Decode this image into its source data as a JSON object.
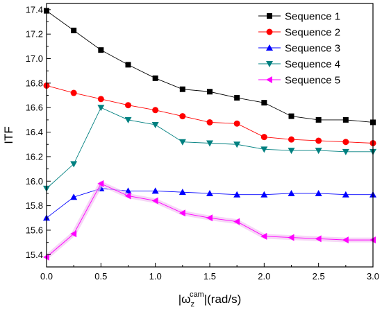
{
  "chart_data": {
    "type": "line",
    "x": [
      0.0,
      0.25,
      0.5,
      0.75,
      1.0,
      1.25,
      1.5,
      1.75,
      2.0,
      2.25,
      2.5,
      2.75,
      3.0
    ],
    "xlabel_prefix": "|ω",
    "xlabel_sub": "z",
    "xlabel_sup": "cam",
    "xlabel_suffix": "|(rad/s)",
    "ylabel": "ITF",
    "xlim": [
      0.0,
      3.0
    ],
    "ylim": [
      15.3,
      17.45
    ],
    "xticks": [
      "0.0",
      "0.5",
      "1.0",
      "1.5",
      "2.0",
      "2.5",
      "3.0"
    ],
    "yticks": [
      "15.4",
      "15.6",
      "15.8",
      "16.0",
      "16.2",
      "16.4",
      "16.6",
      "16.8",
      "17.0",
      "17.2",
      "17.4"
    ],
    "grid": false,
    "legend_position": "top-right",
    "series": [
      {
        "name": "Sequence 1",
        "color": "#000000",
        "marker": "square",
        "values": [
          17.39,
          17.23,
          17.07,
          16.95,
          16.84,
          16.75,
          16.73,
          16.68,
          16.64,
          16.53,
          16.5,
          16.5,
          16.48
        ]
      },
      {
        "name": "Sequence 2",
        "color": "#ff0000",
        "marker": "circle",
        "values": [
          16.78,
          16.72,
          16.67,
          16.62,
          16.58,
          16.53,
          16.48,
          16.47,
          16.36,
          16.34,
          16.33,
          16.32,
          16.31
        ]
      },
      {
        "name": "Sequence 3",
        "color": "#0000ff",
        "marker": "triangle-up",
        "values": [
          15.7,
          15.87,
          15.94,
          15.92,
          15.92,
          15.91,
          15.9,
          15.89,
          15.89,
          15.9,
          15.9,
          15.89,
          15.89
        ]
      },
      {
        "name": "Sequence 4",
        "color": "#008080",
        "marker": "triangle-down",
        "values": [
          15.94,
          16.14,
          16.6,
          16.5,
          16.46,
          16.32,
          16.31,
          16.3,
          16.26,
          16.25,
          16.25,
          16.24,
          16.24
        ]
      },
      {
        "name": "Sequence 5",
        "color": "#ff00ff",
        "marker": "triangle-left",
        "values": [
          15.38,
          15.57,
          15.98,
          15.88,
          15.84,
          15.74,
          15.7,
          15.67,
          15.55,
          15.54,
          15.53,
          15.52,
          15.52
        ]
      }
    ]
  }
}
